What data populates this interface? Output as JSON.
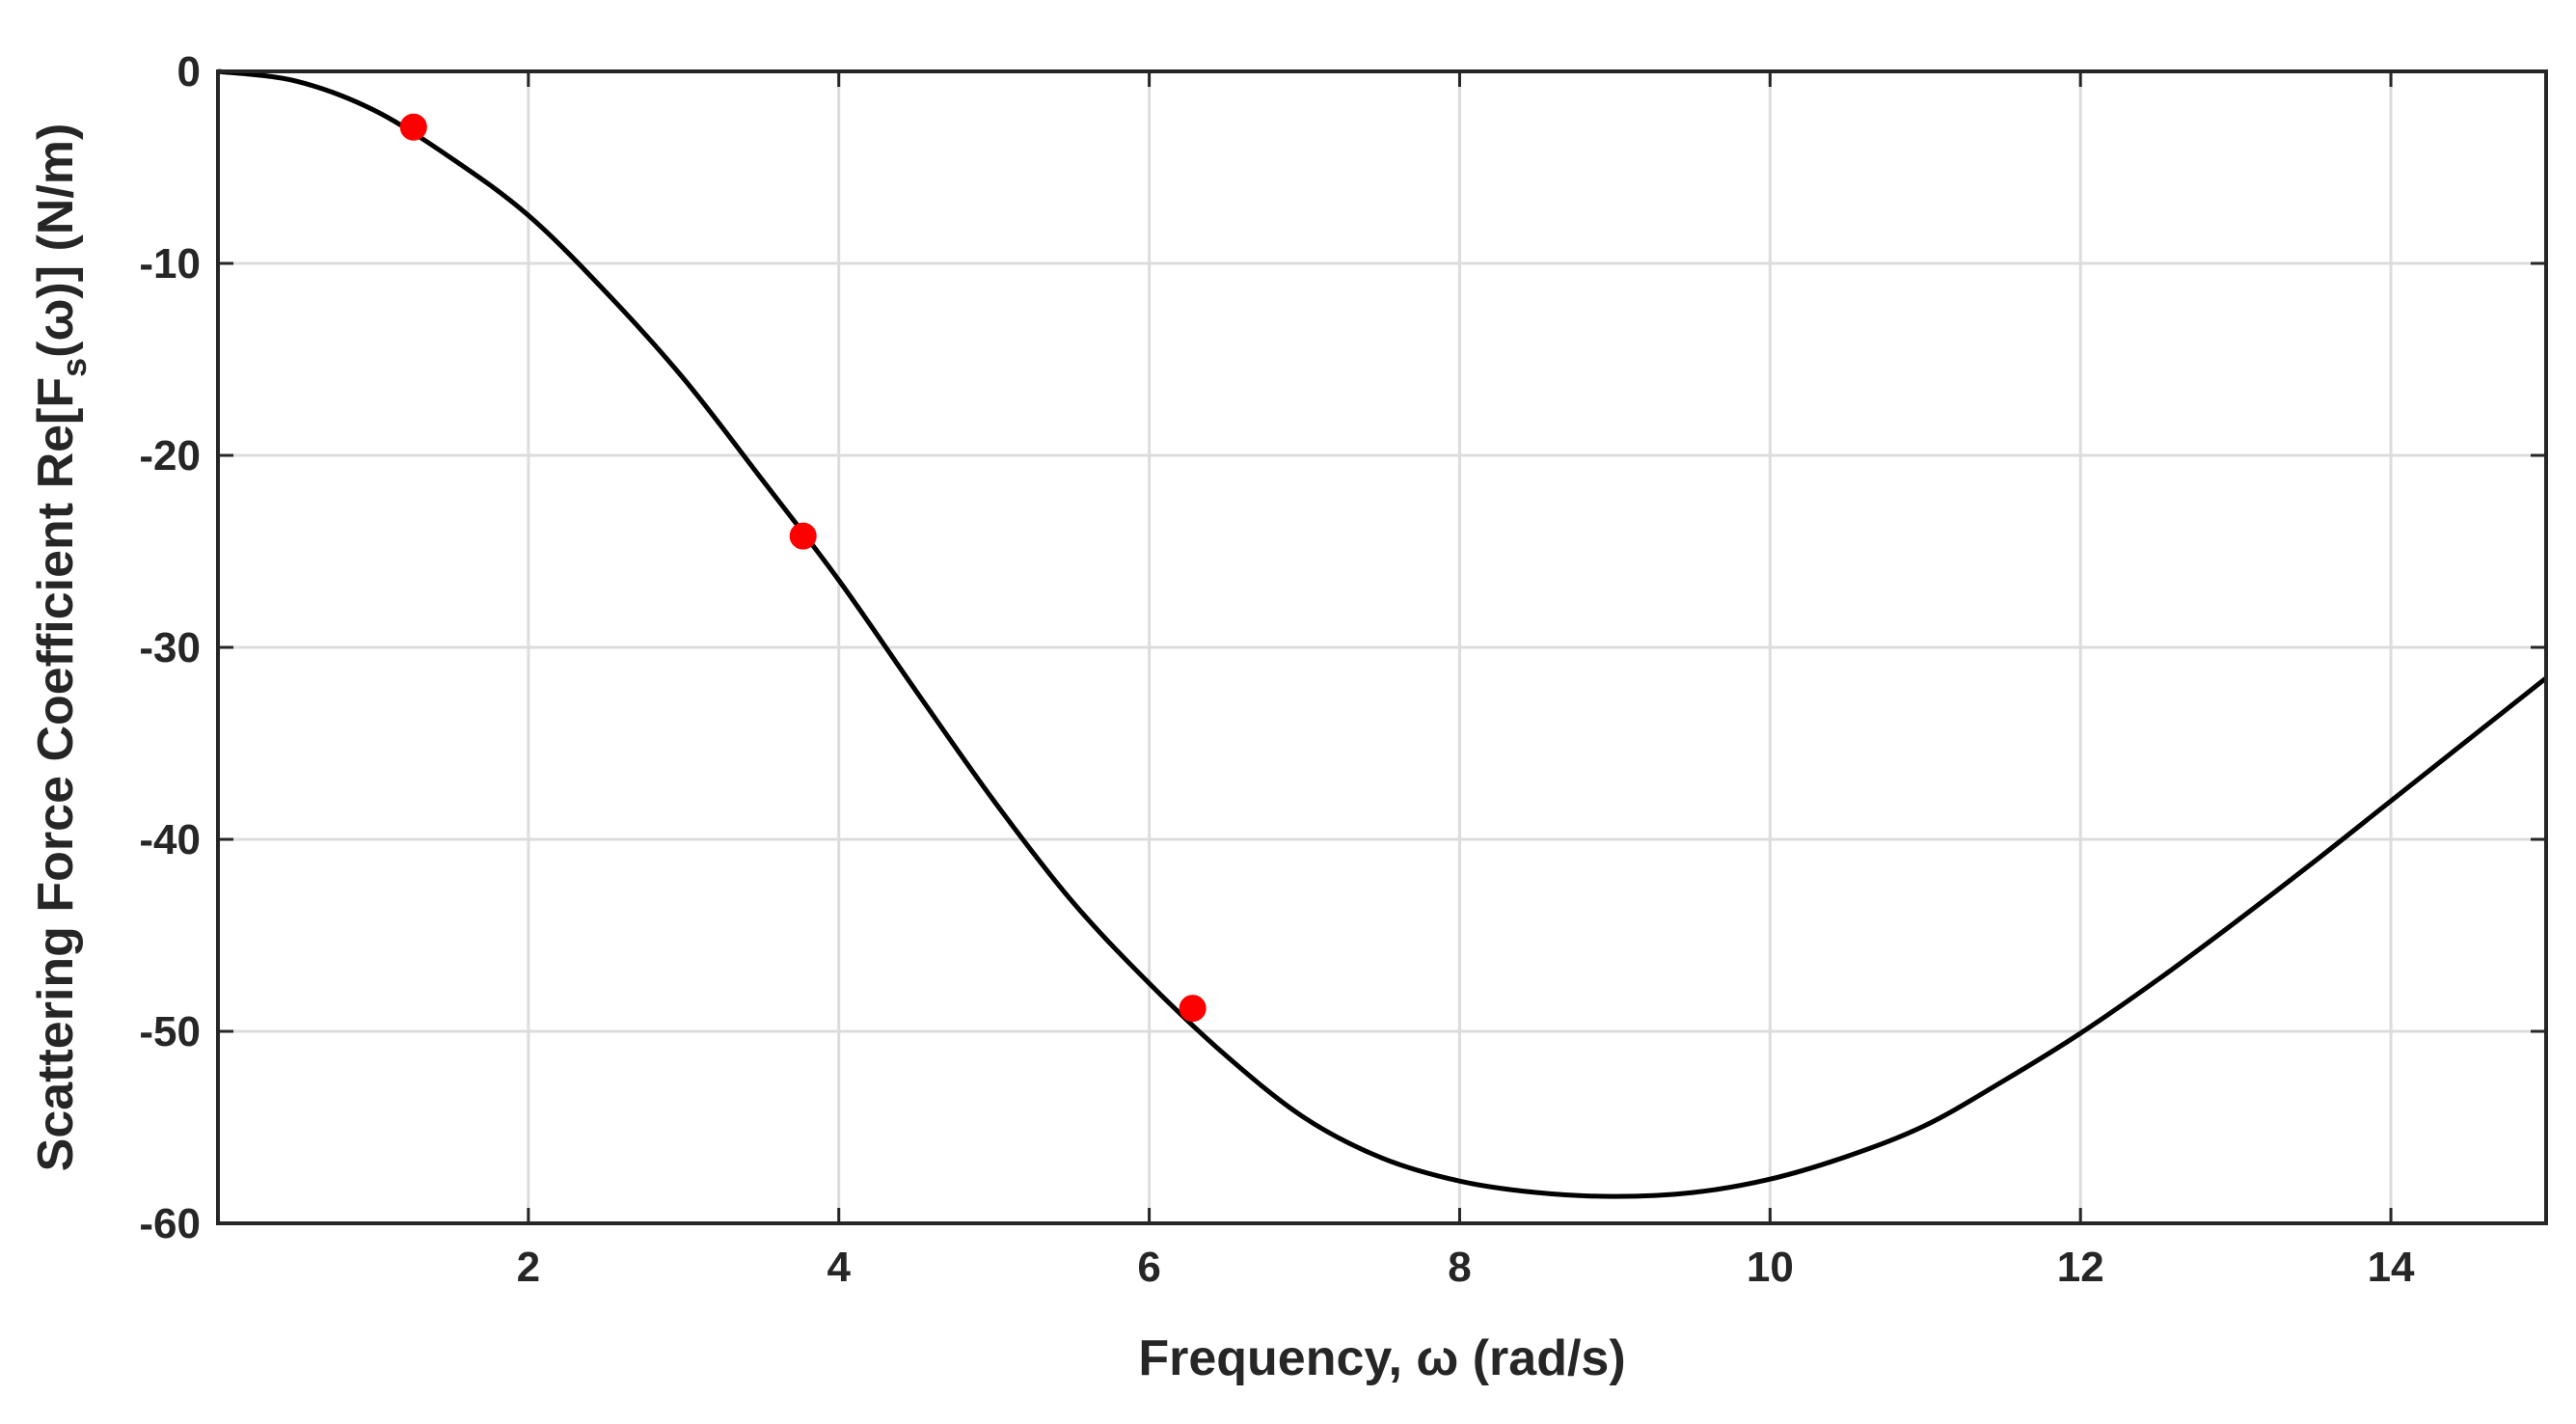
{
  "chart_data": {
    "type": "line",
    "xlabel": "Frequency, ω (rad/s)",
    "ylabel": "Scattering Force Coefficient Re[F_s(ω)] (N/m)",
    "ylabel_parts": {
      "prefix": "Scattering Force Coefficient Re[F",
      "subscript": "s",
      "suffix": "(ω)] (N/m)"
    },
    "xlim": [
      0,
      15
    ],
    "ylim": [
      -60,
      0
    ],
    "xticks": [
      2,
      4,
      6,
      8,
      10,
      12,
      14
    ],
    "xtick_labels": [
      "2",
      "4",
      "6",
      "8",
      "10",
      "12",
      "14"
    ],
    "yticks": [
      0,
      -10,
      -20,
      -30,
      -40,
      -50,
      -60
    ],
    "ytick_labels": [
      "0",
      "-10",
      "-20",
      "-30",
      "-40",
      "-50",
      "-60"
    ],
    "grid": true,
    "series": [
      {
        "style": "line",
        "color": "#000000",
        "x": [
          0,
          0.5,
          1,
          1.5,
          2,
          2.5,
          3,
          3.5,
          4,
          4.5,
          5,
          5.5,
          6,
          6.5,
          7,
          7.5,
          8,
          8.5,
          9,
          9.5,
          10,
          10.5,
          11,
          11.5,
          12,
          12.5,
          13,
          13.5,
          14,
          14.5,
          15
        ],
        "y": [
          0,
          -0.5,
          -2,
          -4.5,
          -7.5,
          -11.5,
          -16,
          -21.2,
          -26.5,
          -32.3,
          -38,
          -43.2,
          -47.5,
          -51.3,
          -54.5,
          -56.6,
          -57.8,
          -58.4,
          -58.6,
          -58.4,
          -57.7,
          -56.5,
          -54.9,
          -52.6,
          -50.1,
          -47.3,
          -44.3,
          -41.2,
          -38,
          -34.8,
          -31.6
        ]
      },
      {
        "style": "markers",
        "color": "#ff0000",
        "x": [
          1.26,
          3.77,
          6.28
        ],
        "y": [
          -2.9,
          -24.2,
          -48.8
        ]
      }
    ]
  }
}
